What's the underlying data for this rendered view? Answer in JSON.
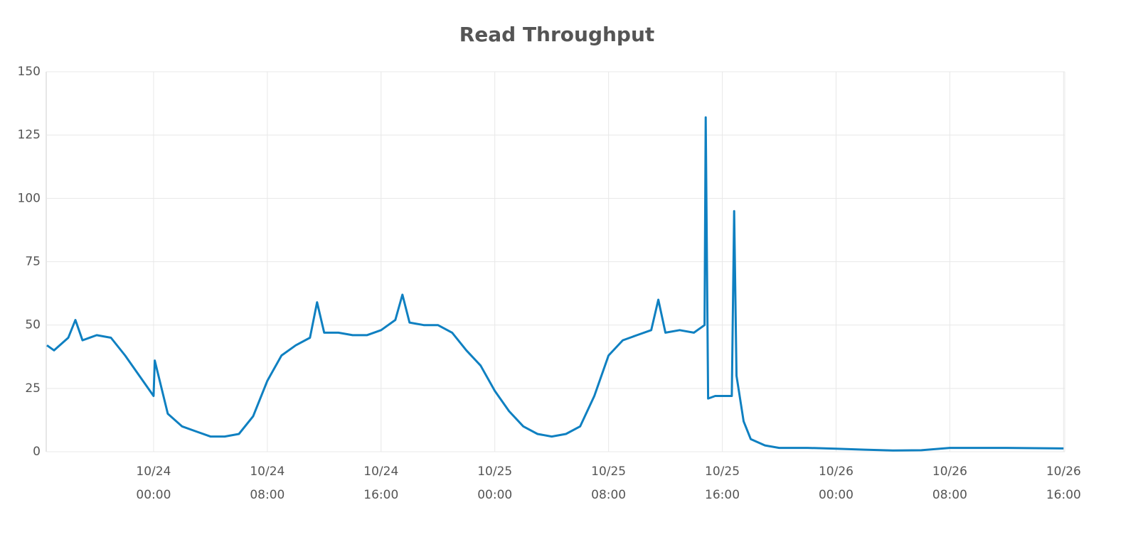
{
  "chart_data": {
    "type": "line",
    "title": "Read Throughput",
    "x": [
      "10/23 16:30",
      "10/23 17:00",
      "10/23 18:00",
      "10/23 18:30",
      "10/23 19:00",
      "10/23 20:00",
      "10/23 21:00",
      "10/23 22:00",
      "10/23 23:00",
      "10/24 00:00",
      "10/24 00:05",
      "10/24 01:00",
      "10/24 02:00",
      "10/24 03:00",
      "10/24 04:00",
      "10/24 05:00",
      "10/24 06:00",
      "10/24 07:00",
      "10/24 08:00",
      "10/24 09:00",
      "10/24 10:00",
      "10/24 11:00",
      "10/24 11:30",
      "10/24 12:00",
      "10/24 13:00",
      "10/24 14:00",
      "10/24 15:00",
      "10/24 16:00",
      "10/24 17:00",
      "10/24 17:30",
      "10/24 18:00",
      "10/24 19:00",
      "10/24 20:00",
      "10/24 21:00",
      "10/24 22:00",
      "10/24 23:00",
      "10/25 00:00",
      "10/25 01:00",
      "10/25 02:00",
      "10/25 03:00",
      "10/25 04:00",
      "10/25 05:00",
      "10/25 06:00",
      "10/25 07:00",
      "10/25 08:00",
      "10/25 09:00",
      "10/25 10:00",
      "10/25 11:00",
      "10/25 11:30",
      "10/25 12:00",
      "10/25 13:00",
      "10/25 14:00",
      "10/25 14:45",
      "10/25 14:50",
      "10/25 15:00",
      "10/25 15:30",
      "10/25 16:00",
      "10/25 16:40",
      "10/25 16:50",
      "10/25 17:00",
      "10/25 17:30",
      "10/25 18:00",
      "10/25 19:00",
      "10/25 20:00",
      "10/25 22:00",
      "10/26 00:00",
      "10/26 02:00",
      "10/26 04:00",
      "10/26 06:00",
      "10/26 08:00",
      "10/26 12:00",
      "10/26 16:00"
    ],
    "series": [
      {
        "name": "Read Throughput",
        "color": "#0f80c1",
        "values": [
          42,
          40,
          45,
          52,
          44,
          46,
          45,
          38,
          30,
          22,
          36,
          15,
          10,
          8,
          6,
          6,
          7,
          14,
          28,
          38,
          42,
          45,
          59,
          47,
          47,
          46,
          46,
          48,
          52,
          62,
          51,
          50,
          50,
          47,
          40,
          34,
          24,
          16,
          10,
          7,
          6,
          7,
          10,
          22,
          38,
          44,
          46,
          48,
          60,
          47,
          48,
          47,
          50,
          132,
          21,
          22,
          22,
          22,
          95,
          30,
          12,
          5,
          2.5,
          1.5,
          1.5,
          1.2,
          0.8,
          0.5,
          0.6,
          1.5,
          1.5,
          1.3
        ]
      }
    ],
    "xlim": [
      "10/23 16:27",
      "10/26 16:05"
    ],
    "xticks": [
      "10/24 00:00",
      "10/24 08:00",
      "10/24 16:00",
      "10/25 00:00",
      "10/25 08:00",
      "10/25 16:00",
      "10/26 00:00",
      "10/26 08:00",
      "10/26 16:00"
    ],
    "ylim": [
      0,
      150
    ],
    "yticks": [
      0,
      25,
      50,
      75,
      100,
      125,
      150
    ],
    "grid": true
  }
}
